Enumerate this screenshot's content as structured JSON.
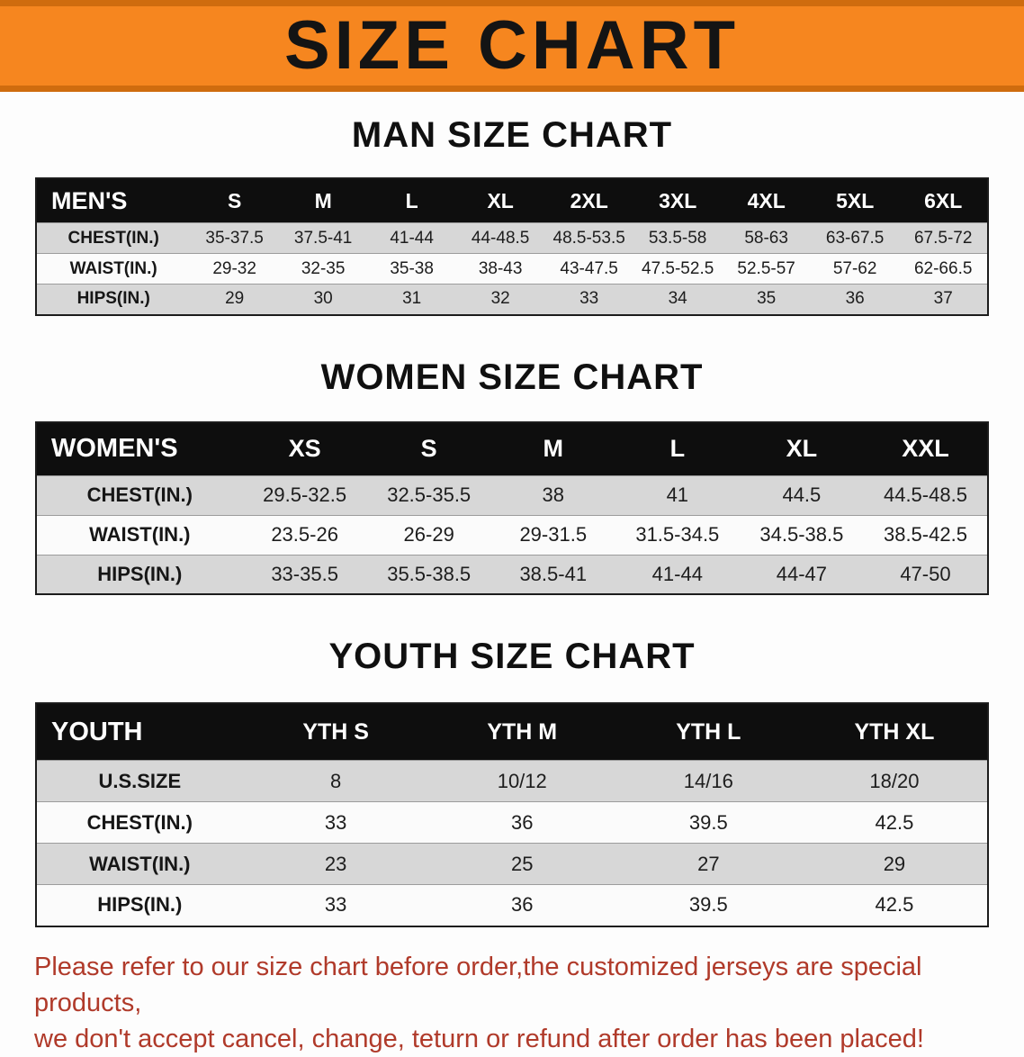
{
  "banner": {
    "title": "SIZE CHART",
    "bg_color": "#f6861f"
  },
  "sections": [
    {
      "heading": "MAN SIZE CHART",
      "table": {
        "header": [
          "MEN'S",
          "S",
          "M",
          "L",
          "XL",
          "2XL",
          "3XL",
          "4XL",
          "5XL",
          "6XL"
        ],
        "rows": [
          [
            "CHEST(IN.)",
            "35-37.5",
            "37.5-41",
            "41-44",
            "44-48.5",
            "48.5-53.5",
            "53.5-58",
            "58-63",
            "63-67.5",
            "67.5-72"
          ],
          [
            "WAIST(IN.)",
            "29-32",
            "32-35",
            "35-38",
            "38-43",
            "43-47.5",
            "47.5-52.5",
            "52.5-57",
            "57-62",
            "62-66.5"
          ],
          [
            "HIPS(IN.)",
            "29",
            "30",
            "31",
            "32",
            "33",
            "34",
            "35",
            "36",
            "37"
          ]
        ]
      }
    },
    {
      "heading": "WOMEN SIZE CHART",
      "table": {
        "header": [
          "WOMEN'S",
          "XS",
          "S",
          "M",
          "L",
          "XL",
          "XXL"
        ],
        "rows": [
          [
            "CHEST(IN.)",
            "29.5-32.5",
            "32.5-35.5",
            "38",
            "41",
            "44.5",
            "44.5-48.5"
          ],
          [
            "WAIST(IN.)",
            "23.5-26",
            "26-29",
            "29-31.5",
            "31.5-34.5",
            "34.5-38.5",
            "38.5-42.5"
          ],
          [
            "HIPS(IN.)",
            "33-35.5",
            "35.5-38.5",
            "38.5-41",
            "41-44",
            "44-47",
            "47-50"
          ]
        ]
      }
    },
    {
      "heading": "YOUTH SIZE CHART",
      "table": {
        "header": [
          "YOUTH",
          "YTH S",
          "YTH M",
          "YTH L",
          "YTH XL"
        ],
        "rows": [
          [
            "U.S.SIZE",
            "8",
            "10/12",
            "14/16",
            "18/20"
          ],
          [
            "CHEST(IN.)",
            "33",
            "36",
            "39.5",
            "42.5"
          ],
          [
            "WAIST(IN.)",
            "23",
            "25",
            "27",
            "29"
          ],
          [
            "HIPS(IN.)",
            "33",
            "36",
            "39.5",
            "42.5"
          ]
        ]
      }
    }
  ],
  "footer": {
    "lines": [
      "Please refer to our size chart before order,the customized jerseys are special products,",
      "we don't accept cancel, change, teturn or refund after order has been placed!"
    ],
    "text_color": "#b03a2a"
  }
}
